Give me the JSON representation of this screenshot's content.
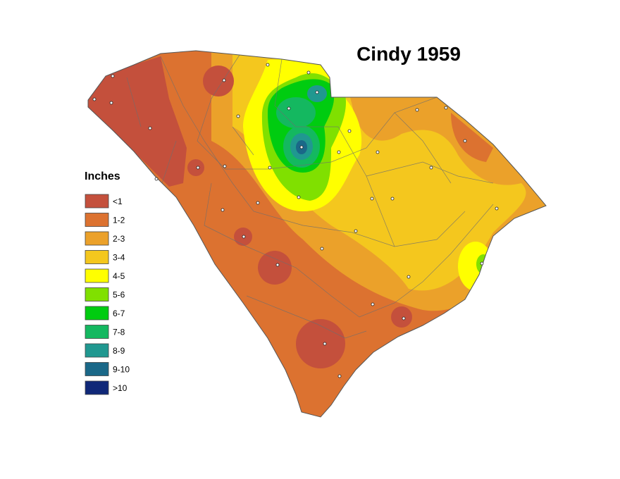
{
  "title": "Cindy 1959",
  "legend": {
    "title": "Inches",
    "items": [
      {
        "label": "<1",
        "color": "#c4503c"
      },
      {
        "label": "1-2",
        "color": "#dc7230"
      },
      {
        "label": "2-3",
        "color": "#eba12a"
      },
      {
        "label": "3-4",
        "color": "#f4c71e"
      },
      {
        "label": "4-5",
        "color": "#ffff00"
      },
      {
        "label": "5-6",
        "color": "#80e000"
      },
      {
        "label": "6-7",
        "color": "#00cc10"
      },
      {
        "label": "7-8",
        "color": "#14b860"
      },
      {
        "label": "8-9",
        "color": "#209890"
      },
      {
        "label": "9-10",
        "color": "#1a6888"
      },
      {
        "label": ">10",
        "color": "#102878"
      }
    ]
  }
}
